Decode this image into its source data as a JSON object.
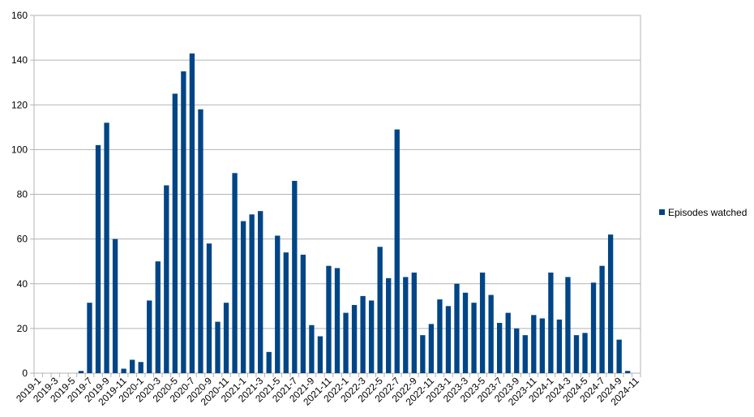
{
  "chart_data": {
    "type": "bar",
    "categories": [
      "2019-1",
      null,
      "2019-3",
      null,
      "2019-5",
      null,
      "2019-7",
      null,
      "2019-9",
      null,
      "2019-11",
      null,
      "2020-1",
      null,
      "2020-3",
      null,
      "2020-5",
      null,
      "2020-7",
      null,
      "2020-9",
      null,
      "2020-11",
      null,
      "2021-1",
      null,
      "2021-3",
      null,
      "2021-5",
      null,
      "2021-7",
      null,
      "2021-9",
      null,
      "2021-11",
      null,
      "2022-1",
      null,
      "2022-3",
      null,
      "2022-5",
      null,
      "2022-7",
      null,
      "2022-9",
      null,
      "2022-11",
      null,
      "2023-1",
      null,
      "2023-3",
      null,
      "2023-5",
      null,
      "2023-7",
      null,
      "2023-9",
      null,
      "2023-11",
      null,
      "2024-1",
      null,
      "2024-3",
      null,
      "2024-5",
      null,
      "2024-7",
      null,
      "2024-9",
      null,
      "2024-11"
    ],
    "series": [
      {
        "name": "Episodes watched",
        "color": "#004586",
        "values": [
          0,
          0,
          0,
          0,
          0,
          1,
          31.5,
          102,
          112,
          60,
          2,
          6,
          5,
          32.5,
          50,
          84,
          125,
          135,
          143,
          118,
          58,
          23,
          31.5,
          89.5,
          68,
          71,
          72.5,
          9.5,
          61.5,
          54,
          86,
          53,
          21.5,
          16.5,
          48,
          47,
          27,
          30.5,
          34.5,
          32.5,
          56.5,
          42.5,
          109,
          43,
          45,
          17,
          22,
          33,
          30,
          40,
          36,
          31.5,
          45,
          35,
          22.5,
          27,
          20,
          17,
          26,
          24.5,
          45,
          24,
          43,
          17,
          18,
          40.5,
          48,
          62,
          15,
          1,
          0
        ]
      }
    ],
    "ylim": [
      0,
      160
    ],
    "yticks": [
      0,
      20,
      40,
      60,
      80,
      100,
      120,
      140,
      160
    ],
    "grid": true,
    "legend": "right"
  }
}
